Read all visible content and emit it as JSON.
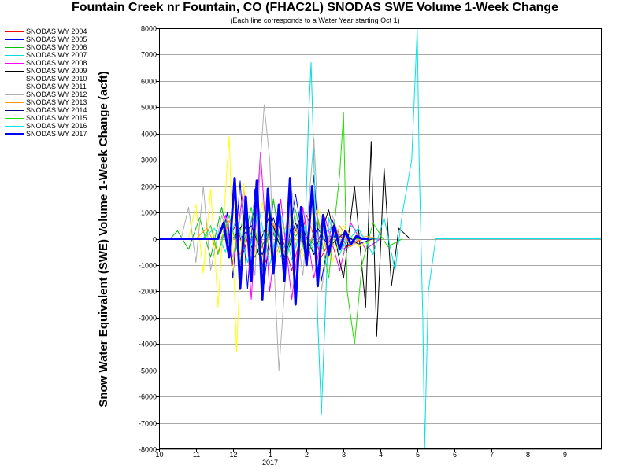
{
  "chart_data": {
    "type": "line",
    "title": "Fountain Creek nr Fountain, CO (FHAC2L) SNODAS SWE Volume 1-Week Change",
    "subtitle": "(Each line corresponds to a Water Year starting Oct 1)",
    "ylabel": "Snow Water Equivalent (SWE) Volume 1-Week Change (acft)",
    "xlabel": "",
    "ylim": [
      -8000,
      8000
    ],
    "yticks": [
      -8000,
      -7000,
      -6000,
      -5000,
      -4000,
      -3000,
      -2000,
      -1000,
      0,
      1000,
      2000,
      3000,
      4000,
      5000,
      6000,
      7000,
      8000
    ],
    "xlim": [
      0,
      12
    ],
    "xticks": [
      {
        "x": 0,
        "label": "10"
      },
      {
        "x": 1,
        "label": "11"
      },
      {
        "x": 2,
        "label": "12"
      },
      {
        "x": 3,
        "label": "1"
      },
      {
        "x": 4,
        "label": "2"
      },
      {
        "x": 5,
        "label": "3"
      },
      {
        "x": 6,
        "label": "4"
      },
      {
        "x": 7,
        "label": "5"
      },
      {
        "x": 8,
        "label": "6"
      },
      {
        "x": 9,
        "label": "7"
      },
      {
        "x": 10,
        "label": "8"
      },
      {
        "x": 11,
        "label": "9"
      }
    ],
    "year_label": "2017",
    "grid": true,
    "legend_position": "left",
    "series": [
      {
        "name": "SNODAS WY 2004",
        "color": "#ff0000",
        "width": 1,
        "points": [
          [
            1.9,
            0
          ],
          [
            2.1,
            600
          ],
          [
            2.3,
            -500
          ],
          [
            2.6,
            1200
          ],
          [
            2.9,
            -900
          ],
          [
            3.2,
            700
          ],
          [
            3.6,
            -1200
          ],
          [
            4.0,
            900
          ],
          [
            4.4,
            -700
          ],
          [
            4.8,
            400
          ],
          [
            5.1,
            -300
          ],
          [
            5.5,
            0
          ]
        ]
      },
      {
        "name": "SNODAS WY 2005",
        "color": "#0000ff",
        "width": 1,
        "points": [
          [
            1.7,
            0
          ],
          [
            1.85,
            1000
          ],
          [
            2.0,
            -1500
          ],
          [
            2.2,
            2200
          ],
          [
            2.4,
            -1900
          ],
          [
            2.6,
            1900
          ],
          [
            2.85,
            -1700
          ],
          [
            3.1,
            1500
          ],
          [
            3.4,
            -1200
          ],
          [
            3.7,
            1700
          ],
          [
            4.0,
            -900
          ],
          [
            4.2,
            2400
          ],
          [
            4.4,
            -1600
          ],
          [
            4.7,
            700
          ],
          [
            5.0,
            -400
          ],
          [
            5.3,
            0
          ]
        ]
      },
      {
        "name": "SNODAS WY 2006",
        "color": "#00c000",
        "width": 1,
        "points": [
          [
            0.3,
            0
          ],
          [
            0.5,
            300
          ],
          [
            0.8,
            -400
          ],
          [
            1.1,
            800
          ],
          [
            1.4,
            -700
          ],
          [
            1.7,
            1200
          ],
          [
            2.0,
            -900
          ],
          [
            2.3,
            900
          ],
          [
            2.7,
            -600
          ],
          [
            3.0,
            400
          ],
          [
            3.4,
            -500
          ],
          [
            3.8,
            300
          ],
          [
            4.2,
            -200
          ],
          [
            4.6,
            100
          ],
          [
            5.2,
            0
          ],
          [
            5.7,
            0
          ]
        ]
      },
      {
        "name": "SNODAS WY 2007",
        "color": "#00dddd",
        "width": 1,
        "points": [
          [
            2.4,
            0
          ],
          [
            2.6,
            1400
          ],
          [
            2.8,
            -1600
          ],
          [
            3.0,
            900
          ],
          [
            3.3,
            -700
          ],
          [
            3.6,
            600
          ],
          [
            3.95,
            -300
          ],
          [
            4.05,
            4500
          ],
          [
            4.12,
            6700
          ],
          [
            4.2,
            3000
          ],
          [
            4.3,
            -3000
          ],
          [
            4.4,
            -6700
          ],
          [
            4.5,
            -3000
          ],
          [
            4.6,
            800
          ],
          [
            4.9,
            -600
          ],
          [
            5.2,
            500
          ],
          [
            5.6,
            0
          ],
          [
            6.0,
            0
          ]
        ]
      },
      {
        "name": "SNODAS WY 2008",
        "color": "#ff00ff",
        "width": 1,
        "points": [
          [
            1.6,
            0
          ],
          [
            1.8,
            900
          ],
          [
            2.0,
            -1000
          ],
          [
            2.3,
            2000
          ],
          [
            2.5,
            -2300
          ],
          [
            2.75,
            3300
          ],
          [
            3.0,
            -2000
          ],
          [
            3.3,
            1500
          ],
          [
            3.6,
            -2300
          ],
          [
            3.9,
            1200
          ],
          [
            4.2,
            -1500
          ],
          [
            4.5,
            800
          ],
          [
            4.9,
            -1200
          ],
          [
            5.2,
            600
          ],
          [
            5.6,
            -400
          ],
          [
            6.0,
            0
          ]
        ]
      },
      {
        "name": "SNODAS WY 2009",
        "color": "#000000",
        "width": 1,
        "points": [
          [
            2.0,
            0
          ],
          [
            2.3,
            600
          ],
          [
            2.6,
            -700
          ],
          [
            3.0,
            900
          ],
          [
            3.4,
            -800
          ],
          [
            3.8,
            700
          ],
          [
            4.2,
            -600
          ],
          [
            4.6,
            1100
          ],
          [
            5.0,
            -1500
          ],
          [
            5.3,
            2000
          ],
          [
            5.6,
            -2600
          ],
          [
            5.75,
            3700
          ],
          [
            5.9,
            -3700
          ],
          [
            6.1,
            2700
          ],
          [
            6.3,
            -1800
          ],
          [
            6.5,
            400
          ],
          [
            6.8,
            0
          ]
        ]
      },
      {
        "name": "SNODAS WY 2010",
        "color": "#ffff00",
        "width": 1,
        "points": [
          [
            0.8,
            0
          ],
          [
            1.0,
            1300
          ],
          [
            1.2,
            -1300
          ],
          [
            1.4,
            1900
          ],
          [
            1.6,
            -2600
          ],
          [
            1.9,
            3900
          ],
          [
            2.1,
            -4300
          ],
          [
            2.3,
            2100
          ],
          [
            2.5,
            -1500
          ],
          [
            2.8,
            1400
          ],
          [
            3.1,
            -1100
          ],
          [
            3.5,
            800
          ],
          [
            3.9,
            -700
          ],
          [
            4.3,
            1200
          ],
          [
            4.7,
            -900
          ],
          [
            5.0,
            500
          ],
          [
            5.4,
            -300
          ],
          [
            5.8,
            0
          ]
        ]
      },
      {
        "name": "SNODAS WY 2011",
        "color": "#ffaa44",
        "width": 1,
        "points": [
          [
            2.6,
            0
          ],
          [
            2.9,
            400
          ],
          [
            3.2,
            -500
          ],
          [
            3.5,
            700
          ],
          [
            3.8,
            -600
          ],
          [
            4.1,
            500
          ],
          [
            4.4,
            -400
          ],
          [
            4.8,
            300
          ],
          [
            5.2,
            -200
          ],
          [
            5.6,
            100
          ],
          [
            6.0,
            0
          ]
        ]
      },
      {
        "name": "SNODAS WY 2012",
        "color": "#b0b0b0",
        "width": 1,
        "points": [
          [
            0.6,
            0
          ],
          [
            0.8,
            1200
          ],
          [
            1.0,
            -900
          ],
          [
            1.2,
            2000
          ],
          [
            1.4,
            -1200
          ],
          [
            1.7,
            900
          ],
          [
            2.0,
            -700
          ],
          [
            2.3,
            1500
          ],
          [
            2.6,
            -1400
          ],
          [
            2.75,
            3000
          ],
          [
            2.85,
            5100
          ],
          [
            3.0,
            3000
          ],
          [
            3.15,
            -2000
          ],
          [
            3.25,
            -5000
          ],
          [
            3.4,
            -2000
          ],
          [
            3.6,
            1800
          ],
          [
            3.9,
            -1400
          ],
          [
            4.2,
            3800
          ],
          [
            4.4,
            -2000
          ],
          [
            4.7,
            900
          ],
          [
            5.0,
            -500
          ],
          [
            5.4,
            0
          ]
        ]
      },
      {
        "name": "SNODAS WY 2013",
        "color": "#ff9900",
        "width": 1,
        "points": [
          [
            1.0,
            0
          ],
          [
            1.3,
            400
          ],
          [
            1.6,
            -500
          ],
          [
            1.9,
            700
          ],
          [
            2.2,
            -600
          ],
          [
            2.5,
            500
          ],
          [
            2.8,
            -700
          ],
          [
            3.1,
            600
          ],
          [
            3.4,
            -500
          ],
          [
            3.7,
            400
          ],
          [
            4.0,
            -600
          ],
          [
            4.3,
            800
          ],
          [
            4.6,
            -700
          ],
          [
            4.9,
            500
          ],
          [
            5.2,
            -300
          ],
          [
            5.5,
            0
          ]
        ]
      },
      {
        "name": "SNODAS WY 2014",
        "color": "#000080",
        "width": 1,
        "points": [
          [
            2.2,
            0
          ],
          [
            2.5,
            500
          ],
          [
            2.8,
            -600
          ],
          [
            3.1,
            800
          ],
          [
            3.4,
            -700
          ],
          [
            3.7,
            600
          ],
          [
            4.0,
            -500
          ],
          [
            4.3,
            400
          ],
          [
            4.6,
            -300
          ],
          [
            5.0,
            200
          ],
          [
            5.4,
            -200
          ],
          [
            5.8,
            0
          ]
        ]
      },
      {
        "name": "SNODAS WY 2015",
        "color": "#22dd00",
        "width": 1,
        "points": [
          [
            1.2,
            0
          ],
          [
            1.4,
            500
          ],
          [
            1.6,
            -600
          ],
          [
            1.9,
            900
          ],
          [
            2.2,
            -900
          ],
          [
            2.5,
            1200
          ],
          [
            2.8,
            -1200
          ],
          [
            3.1,
            1500
          ],
          [
            3.4,
            -1300
          ],
          [
            3.7,
            1100
          ],
          [
            4.0,
            -900
          ],
          [
            4.3,
            800
          ],
          [
            4.6,
            -1500
          ],
          [
            4.9,
            2500
          ],
          [
            5.0,
            4800
          ],
          [
            5.1,
            -2000
          ],
          [
            5.3,
            -4000
          ],
          [
            5.5,
            -1000
          ],
          [
            5.8,
            600
          ],
          [
            6.2,
            -300
          ],
          [
            6.6,
            0
          ]
        ]
      },
      {
        "name": "SNODAS WY 2016",
        "color": "#00e6e6",
        "width": 1,
        "points": [
          [
            1.2,
            0
          ],
          [
            1.5,
            400
          ],
          [
            1.8,
            -500
          ],
          [
            2.1,
            800
          ],
          [
            2.4,
            -900
          ],
          [
            2.7,
            1200
          ],
          [
            3.0,
            -1000
          ],
          [
            3.3,
            900
          ],
          [
            3.6,
            -800
          ],
          [
            3.9,
            600
          ],
          [
            4.2,
            -500
          ],
          [
            4.6,
            400
          ],
          [
            5.0,
            -300
          ],
          [
            5.4,
            400
          ],
          [
            5.8,
            -600
          ],
          [
            6.1,
            800
          ],
          [
            6.4,
            -1200
          ],
          [
            6.6,
            1000
          ],
          [
            6.85,
            3000
          ],
          [
            7.0,
            8000
          ],
          [
            7.05,
            3000
          ],
          [
            7.15,
            -3000
          ],
          [
            7.2,
            -8000
          ],
          [
            7.3,
            -2000
          ],
          [
            7.5,
            0
          ],
          [
            8.0,
            0
          ],
          [
            9.0,
            0
          ],
          [
            10.0,
            0
          ],
          [
            11.0,
            0
          ],
          [
            12.0,
            0
          ]
        ]
      },
      {
        "name": "SNODAS WY 2017",
        "color": "#0000ff",
        "width": 3,
        "points": [
          [
            0,
            0
          ],
          [
            1.0,
            0
          ],
          [
            1.6,
            0
          ],
          [
            1.75,
            600
          ],
          [
            1.9,
            -700
          ],
          [
            2.05,
            2300
          ],
          [
            2.2,
            -1900
          ],
          [
            2.35,
            1600
          ],
          [
            2.5,
            -1600
          ],
          [
            2.65,
            2200
          ],
          [
            2.8,
            -2300
          ],
          [
            2.95,
            1900
          ],
          [
            3.1,
            -1300
          ],
          [
            3.25,
            1300
          ],
          [
            3.4,
            -1600
          ],
          [
            3.55,
            2300
          ],
          [
            3.7,
            -2500
          ],
          [
            3.85,
            1200
          ],
          [
            4.0,
            -1000
          ],
          [
            4.15,
            2000
          ],
          [
            4.3,
            -1800
          ],
          [
            4.45,
            900
          ],
          [
            4.6,
            -600
          ],
          [
            4.75,
            500
          ],
          [
            4.9,
            -400
          ],
          [
            5.05,
            300
          ],
          [
            5.2,
            -200
          ],
          [
            5.35,
            100
          ],
          [
            5.5,
            0
          ],
          [
            5.7,
            0
          ]
        ]
      }
    ]
  }
}
